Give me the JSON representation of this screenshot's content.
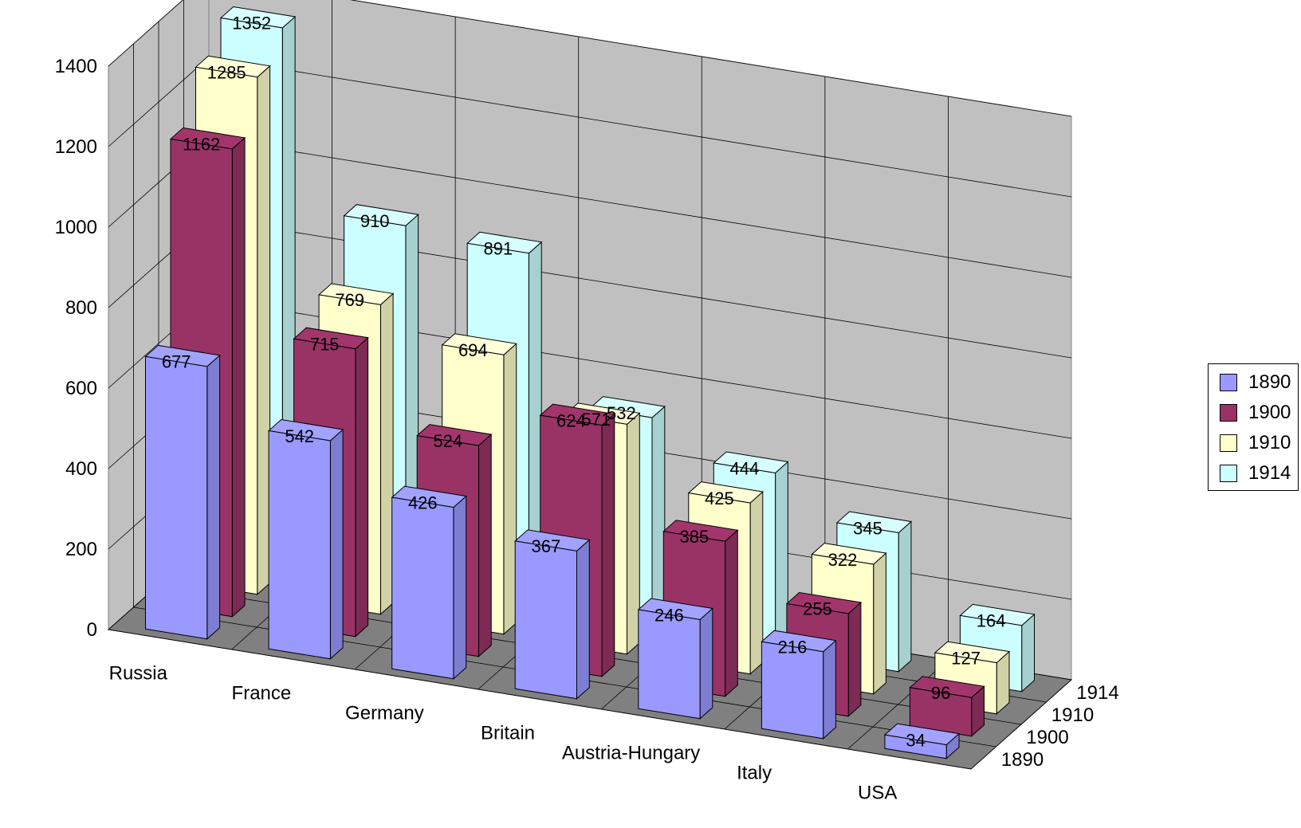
{
  "chart_data": {
    "type": "bar",
    "subtype": "3d-column",
    "categories": [
      "Russia",
      "France",
      "Germany",
      "Britain",
      "Austria-Hungary",
      "Italy",
      "USA"
    ],
    "series": [
      {
        "name": "1890",
        "color": "#9999ff",
        "values": [
          677,
          542,
          426,
          367,
          246,
          216,
          34
        ]
      },
      {
        "name": "1900",
        "color": "#993366",
        "values": [
          1162,
          715,
          524,
          624,
          385,
          255,
          96
        ]
      },
      {
        "name": "1910",
        "color": "#ffffcc",
        "values": [
          1285,
          769,
          694,
          571,
          425,
          322,
          127
        ]
      },
      {
        "name": "1914",
        "color": "#ccffff",
        "values": [
          1352,
          910,
          891,
          532,
          444,
          345,
          164
        ]
      }
    ],
    "y_ticks": [
      "0",
      "200",
      "400",
      "600",
      "800",
      "1000",
      "1200",
      "1400"
    ],
    "depth_ticks": [
      "1890",
      "1900",
      "1910",
      "1914"
    ],
    "ylim": [
      0,
      1400
    ],
    "grid": true,
    "data_labels": true,
    "legend_position": "right"
  }
}
